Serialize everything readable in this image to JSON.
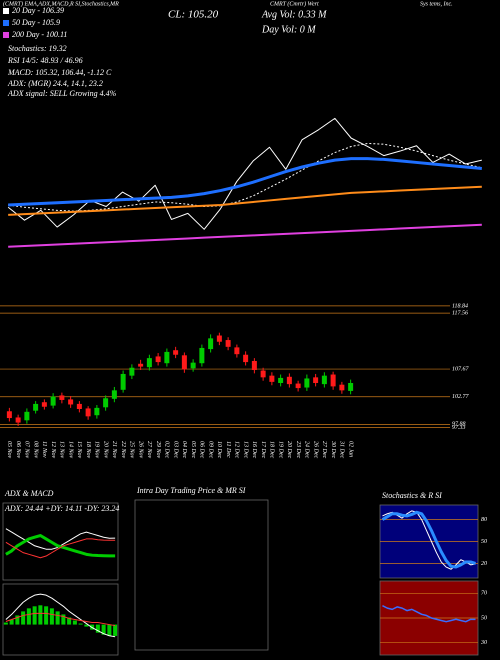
{
  "header": {
    "title_left": "(CMRT) EMA,ADX,MACD,R SI,Stochastics,MR",
    "title_mid": "CMRT (Cmrtr) Wert",
    "title_right": "Sys tems, Inc.",
    "close": "CL: 105.20",
    "avg_vol": "Avg Vol: 0.33 M",
    "day_vol": "Day Vol: 0 M",
    "stochastics": "Stochastics: 19.32",
    "rsi": "RSI 14/5: 48.93 / 46.96",
    "macd": "MACD: 105.32, 106.44, -1.12 C",
    "adx": "ADX: (MGR) 24.4, 14.1, 23.2",
    "adx_signal": "ADX signal: SELL Growing 4.4%"
  },
  "chart_data": [
    {
      "type": "line",
      "legend": "upper left",
      "ylim": [
        94,
        114
      ],
      "series": [
        {
          "color": "#ffffff",
          "linewidth": 1,
          "values": [
            101.2,
            99.5,
            100.8,
            98.6,
            100.2,
            102.1,
            101.3,
            103.2,
            102.0,
            104.1,
            99.6,
            100.4,
            98.3,
            101.0,
            104.6,
            107.3,
            109.1,
            106.2,
            110.1,
            111.4,
            112.9,
            110.3,
            109.2,
            108.0,
            108.6,
            109.3,
            107.1,
            108.2,
            106.9,
            107.4
          ]
        },
        {
          "name": "20 Day - 106.39",
          "color": "#ffffff",
          "linewidth": 1,
          "linestyle": "dotted",
          "values": [
            101.5,
            101.2,
            101.0,
            100.8,
            100.7,
            100.8,
            101.0,
            101.3,
            101.6,
            101.9,
            101.8,
            101.6,
            101.3,
            101.4,
            101.9,
            102.7,
            103.8,
            104.9,
            106.1,
            107.3,
            108.4,
            109.2,
            109.6,
            109.5,
            109.1,
            108.6,
            108.0,
            107.4,
            106.9,
            106.4
          ]
        },
        {
          "name": "50 Day - 105.9",
          "color": "#1e6fff",
          "linewidth": 3,
          "values": [
            101.5,
            101.6,
            101.7,
            101.8,
            101.9,
            102.0,
            102.1,
            102.2,
            102.3,
            102.4,
            102.5,
            102.7,
            103.0,
            103.4,
            103.9,
            104.5,
            105.2,
            105.9,
            106.5,
            107.0,
            107.4,
            107.6,
            107.6,
            107.5,
            107.3,
            107.1,
            106.9,
            106.7,
            106.5,
            106.3
          ]
        },
        {
          "color": "#ff8c1a",
          "linewidth": 2,
          "values": [
            100.2,
            100.3,
            100.4,
            100.5,
            100.6,
            100.7,
            100.8,
            100.9,
            101.0,
            101.1,
            101.2,
            101.3,
            101.4,
            101.5,
            101.7,
            101.9,
            102.1,
            102.3,
            102.5,
            102.7,
            102.9,
            103.1,
            103.2,
            103.3,
            103.4,
            103.5,
            103.6,
            103.7,
            103.8,
            103.9
          ]
        },
        {
          "name": "200 Day - 100.11",
          "color": "#e040e0",
          "linewidth": 2,
          "values": [
            96.0,
            96.1,
            96.2,
            96.3,
            96.4,
            96.5,
            96.6,
            96.7,
            96.8,
            96.9,
            97.0,
            97.1,
            97.2,
            97.3,
            97.4,
            97.5,
            97.6,
            97.7,
            97.8,
            97.9,
            98.0,
            98.1,
            98.2,
            98.3,
            98.4,
            98.5,
            98.6,
            98.7,
            98.8,
            98.9
          ]
        }
      ]
    },
    {
      "type": "candlestick",
      "up_color": "#00cc00",
      "down_color": "#ff1a1a",
      "grid": true,
      "ylim": [
        96,
        119
      ],
      "yticks": [
        118.84,
        117.56,
        107.67,
        102.77,
        97.88,
        97.33
      ],
      "categories": [
        "05 Nov",
        "06 Nov",
        "07 Nov",
        "08 Nov",
        "11 Nov",
        "12 Nov",
        "13 Nov",
        "14 Nov",
        "15 Nov",
        "18 Nov",
        "19 Nov",
        "20 Nov",
        "21 Nov",
        "22 Nov",
        "25 Nov",
        "26 Nov",
        "27 Nov",
        "29 Nov",
        "02 Dec",
        "03 Dec",
        "04 Dec",
        "05 Dec",
        "06 Dec",
        "09 Dec",
        "10 Dec",
        "11 Dec",
        "12 Dec",
        "13 Dec",
        "16 Dec",
        "17 Dec",
        "18 Dec",
        "19 Dec",
        "20 Dec",
        "23 Dec",
        "24 Dec",
        "26 Dec",
        "27 Dec",
        "30 Dec",
        "31 Dec",
        "02 Jan"
      ],
      "open": [
        100.2,
        99.1,
        98.6,
        100.3,
        101.8,
        101.2,
        103.0,
        102.3,
        101.5,
        100.7,
        99.5,
        100.9,
        102.4,
        104.0,
        106.5,
        108.6,
        108.0,
        109.9,
        108.7,
        111.0,
        110.1,
        107.8,
        108.7,
        111.2,
        113.6,
        112.8,
        111.5,
        110.2,
        109.1,
        107.4,
        106.5,
        105.2,
        106.3,
        105.1,
        104.4,
        106.2,
        105.0,
        106.7,
        104.9,
        103.8
      ],
      "high": [
        100.8,
        99.6,
        100.7,
        102.0,
        102.3,
        103.4,
        103.5,
        102.9,
        102.0,
        101.1,
        101.3,
        103.0,
        104.5,
        107.4,
        108.5,
        109.3,
        110.2,
        110.5,
        111.3,
        111.6,
        110.6,
        109.4,
        112.0,
        113.8,
        114.1,
        113.3,
        112.0,
        110.8,
        109.6,
        107.9,
        107.1,
        106.7,
        106.9,
        105.6,
        106.7,
        106.8,
        107.1,
        107.2,
        105.4,
        105.8
      ],
      "low": [
        98.4,
        97.6,
        98.0,
        99.8,
        100.5,
        100.7,
        101.6,
        100.8,
        100.0,
        98.7,
        98.9,
        100.3,
        101.8,
        103.5,
        105.9,
        107.5,
        107.4,
        108.3,
        108.1,
        109.6,
        107.0,
        107.2,
        108.1,
        110.6,
        111.9,
        111.0,
        109.7,
        108.3,
        106.9,
        105.6,
        104.8,
        104.6,
        104.4,
        103.7,
        103.8,
        104.6,
        104.4,
        104.0,
        103.3,
        103.2
      ],
      "close": [
        99.0,
        98.2,
        100.1,
        101.5,
        101.0,
        102.8,
        102.2,
        101.4,
        100.6,
        99.3,
        100.8,
        102.5,
        103.9,
        106.8,
        107.9,
        108.1,
        109.6,
        108.9,
        110.7,
        110.2,
        107.6,
        108.8,
        111.4,
        113.1,
        112.5,
        111.6,
        110.3,
        108.9,
        107.5,
        106.2,
        105.4,
        106.1,
        105.0,
        104.3,
        106.0,
        105.2,
        106.5,
        104.6,
        103.9,
        105.2
      ]
    },
    {
      "type": "line",
      "title": "ADX & MACD",
      "annotation": "ADX: 24.44 +DY: 14.11 -DY: 23.24",
      "ylim": [
        0,
        45
      ],
      "series": [
        {
          "color": "#ffffff",
          "linewidth": 1,
          "values": [
            30,
            28,
            26,
            24,
            22,
            20,
            19,
            18,
            18,
            19,
            21,
            23,
            25,
            27,
            28,
            27,
            26,
            25,
            24.4,
            24.44
          ]
        },
        {
          "color": "#00cc00",
          "linewidth": 3,
          "values": [
            15,
            17,
            20,
            22,
            24,
            25,
            26,
            24,
            22,
            20,
            19,
            18,
            17,
            16,
            15,
            14.5,
            14.3,
            14.2,
            14.1,
            14.11
          ]
        },
        {
          "color": "#ff3333",
          "linewidth": 1,
          "values": [
            22,
            20,
            18,
            16,
            15,
            14,
            13,
            14,
            16,
            18,
            20,
            21,
            22,
            23,
            24,
            24,
            23.5,
            23.3,
            23.2,
            23.24
          ]
        }
      ]
    },
    {
      "type": "combo",
      "color": "#00cc00",
      "ylim": [
        -3,
        4
      ],
      "values": [
        0.2,
        0.5,
        0.9,
        1.3,
        1.6,
        1.8,
        1.9,
        1.8,
        1.6,
        1.3,
        1.0,
        0.7,
        0.4,
        0.1,
        -0.2,
        -0.5,
        -0.8,
        -1.0,
        -1.1,
        -1.12
      ],
      "series": [
        {
          "color": "#ffffff",
          "linewidth": 1,
          "values": [
            0.5,
            1.0,
            1.6,
            2.2,
            2.6,
            2.9,
            3.0,
            2.9,
            2.6,
            2.2,
            1.8,
            1.3,
            0.9,
            0.5,
            0.1,
            -0.3,
            -0.6,
            -0.9,
            -1.1,
            -1.2
          ]
        },
        {
          "color": "#ff3333",
          "linewidth": 1,
          "values": [
            0.3,
            0.5,
            0.7,
            0.9,
            1.0,
            1.1,
            1.1,
            1.1,
            1.0,
            0.9,
            0.8,
            0.6,
            0.5,
            0.4,
            0.3,
            0.2,
            0.2,
            0.1,
            0,
            -0.1
          ]
        }
      ]
    },
    {
      "type": "line",
      "title": "Intra Day Trading Price & MR SI",
      "series": []
    },
    {
      "type": "line",
      "title": "Stochastics & R SI",
      "background": "#00007a",
      "grid": true,
      "ylim": [
        0,
        100
      ],
      "yticks": [
        80,
        50,
        20
      ],
      "series": [
        {
          "color": "#ffffff",
          "linewidth": 1,
          "values": [
            85,
            88,
            90,
            86,
            82,
            88,
            92,
            90,
            80,
            65,
            50,
            35,
            22,
            15,
            12,
            18,
            25,
            22,
            18,
            19.32
          ]
        },
        {
          "color": "#2a8cff",
          "linewidth": 3,
          "values": [
            80,
            84,
            88,
            88,
            86,
            85,
            87,
            90,
            88,
            78,
            65,
            50,
            36,
            24,
            16,
            15,
            18,
            22,
            22,
            20
          ]
        }
      ]
    },
    {
      "type": "line",
      "background": "#8b0000",
      "grid": true,
      "ylim": [
        20,
        80
      ],
      "yticks": [
        70,
        50,
        30
      ],
      "series": [
        {
          "color": "#3a6cff",
          "linewidth": 1.5,
          "values": [
            60,
            58,
            57,
            59,
            58,
            56,
            57,
            55,
            53,
            52,
            50,
            49,
            48,
            47,
            48,
            49,
            48,
            47,
            48.9,
            48.93
          ]
        }
      ]
    }
  ]
}
